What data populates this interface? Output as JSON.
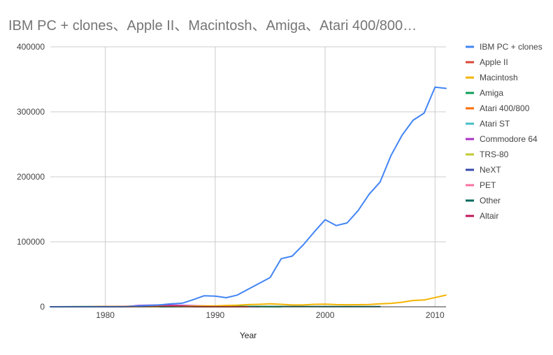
{
  "chart_data": {
    "type": "line",
    "title": "IBM PC + clones、Apple II、Macintosh、Amiga、Atari 400/800…",
    "xlabel": "Year",
    "ylabel": "",
    "xlim": [
      1975,
      2011
    ],
    "ylim": [
      0,
      400000
    ],
    "x_ticks": [
      1980,
      1990,
      2000,
      2010
    ],
    "y_ticks": [
      0,
      100000,
      200000,
      300000,
      400000
    ],
    "grid": true,
    "legend_position": "right",
    "series": [
      {
        "name": "IBM PC + clones",
        "color": "#4285f4",
        "x": [
          1975,
          1976,
          1977,
          1978,
          1979,
          1980,
          1981,
          1982,
          1983,
          1984,
          1985,
          1986,
          1987,
          1988,
          1989,
          1990,
          1991,
          1992,
          1993,
          1994,
          1995,
          1996,
          1997,
          1998,
          1999,
          2000,
          2001,
          2002,
          2003,
          2004,
          2005,
          2006,
          2007,
          2008,
          2009,
          2010,
          2011
        ],
        "y": [
          0,
          0,
          0,
          0,
          0,
          0,
          35,
          200,
          1300,
          2000,
          3000,
          4500,
          5500,
          11000,
          17000,
          16500,
          14000,
          18000,
          27000,
          36000,
          45000,
          74000,
          78000,
          95000,
          115000,
          134000,
          125000,
          129000,
          148000,
          173000,
          192000,
          233000,
          264000,
          287000,
          298000,
          338000,
          336000
        ]
      },
      {
        "name": "Apple II",
        "color": "#db4437",
        "x": [
          1977,
          1978,
          1979,
          1980,
          1981,
          1982,
          1983,
          1984,
          1985,
          1986,
          1987,
          1988,
          1989,
          1990,
          1991,
          1992,
          1993
        ],
        "y": [
          1,
          8,
          35,
          78,
          150,
          300,
          600,
          1000,
          900,
          700,
          500,
          300,
          200,
          100,
          50,
          20,
          0
        ]
      },
      {
        "name": "Macintosh",
        "color": "#f4b400",
        "x": [
          1984,
          1985,
          1986,
          1987,
          1988,
          1989,
          1990,
          1991,
          1992,
          1993,
          1994,
          1995,
          1996,
          1997,
          1998,
          1999,
          2000,
          2001,
          2002,
          2003,
          2004,
          2005,
          2006,
          2007,
          2008,
          2009,
          2010,
          2011
        ],
        "y": [
          300,
          500,
          600,
          900,
          1100,
          1300,
          1300,
          2000,
          2500,
          3300,
          3800,
          4500,
          3800,
          2800,
          2800,
          3800,
          4000,
          3300,
          3100,
          3200,
          3500,
          4500,
          5300,
          7000,
          9700,
          10400,
          14200,
          18000
        ]
      },
      {
        "name": "Amiga",
        "color": "#0f9d58",
        "x": [
          1985,
          1986,
          1987,
          1988,
          1989,
          1990,
          1991,
          1992,
          1993,
          1994,
          1995,
          1996
        ],
        "y": [
          35,
          150,
          300,
          500,
          700,
          800,
          900,
          700,
          500,
          300,
          100,
          0
        ]
      },
      {
        "name": "Atari 400/800",
        "color": "#ff6d00",
        "x": [
          1979,
          1980,
          1981,
          1982,
          1983,
          1984,
          1985,
          1986,
          1987,
          1988,
          1989,
          1990,
          1991,
          1992
        ],
        "y": [
          100,
          200,
          300,
          600,
          1000,
          800,
          600,
          400,
          300,
          200,
          100,
          50,
          20,
          0
        ]
      },
      {
        "name": "Atari ST",
        "color": "#46bdc6",
        "x": [
          1985,
          1986,
          1987,
          1988,
          1989,
          1990,
          1991,
          1992,
          1993
        ],
        "y": [
          100,
          300,
          500,
          600,
          700,
          600,
          400,
          200,
          0
        ]
      },
      {
        "name": "Commodore 64",
        "color": "#ab30c4",
        "x": [
          1982,
          1983,
          1984,
          1985,
          1986,
          1987,
          1988,
          1989,
          1990,
          1991,
          1992,
          1993,
          1994
        ],
        "y": [
          400,
          2000,
          2500,
          2800,
          2500,
          2200,
          1600,
          1200,
          800,
          500,
          300,
          100,
          0
        ]
      },
      {
        "name": "TRS-80",
        "color": "#c0ca33",
        "x": [
          1977,
          1978,
          1979,
          1980,
          1981,
          1982,
          1983,
          1984,
          1985
        ],
        "y": [
          100,
          150,
          200,
          250,
          300,
          250,
          200,
          100,
          0
        ]
      },
      {
        "name": "NeXT",
        "color": "#3949ab",
        "x": [
          1988,
          1989,
          1990,
          1991,
          1992,
          1993
        ],
        "y": [
          0,
          10,
          20,
          30,
          20,
          0
        ]
      },
      {
        "name": "PET",
        "color": "#ff6fa0",
        "x": [
          1977,
          1978,
          1979,
          1980,
          1981,
          1982,
          1983,
          1984
        ],
        "y": [
          20,
          50,
          80,
          100,
          120,
          100,
          50,
          0
        ]
      },
      {
        "name": "Other",
        "color": "#00695c",
        "x": [
          1975,
          1980,
          1985,
          1990,
          1995,
          2000,
          2005
        ],
        "y": [
          0,
          300,
          600,
          500,
          400,
          300,
          200
        ]
      },
      {
        "name": "Altair",
        "color": "#c2185b",
        "x": [
          1975,
          1976,
          1977,
          1978
        ],
        "y": [
          5,
          10,
          5,
          0
        ]
      }
    ]
  }
}
